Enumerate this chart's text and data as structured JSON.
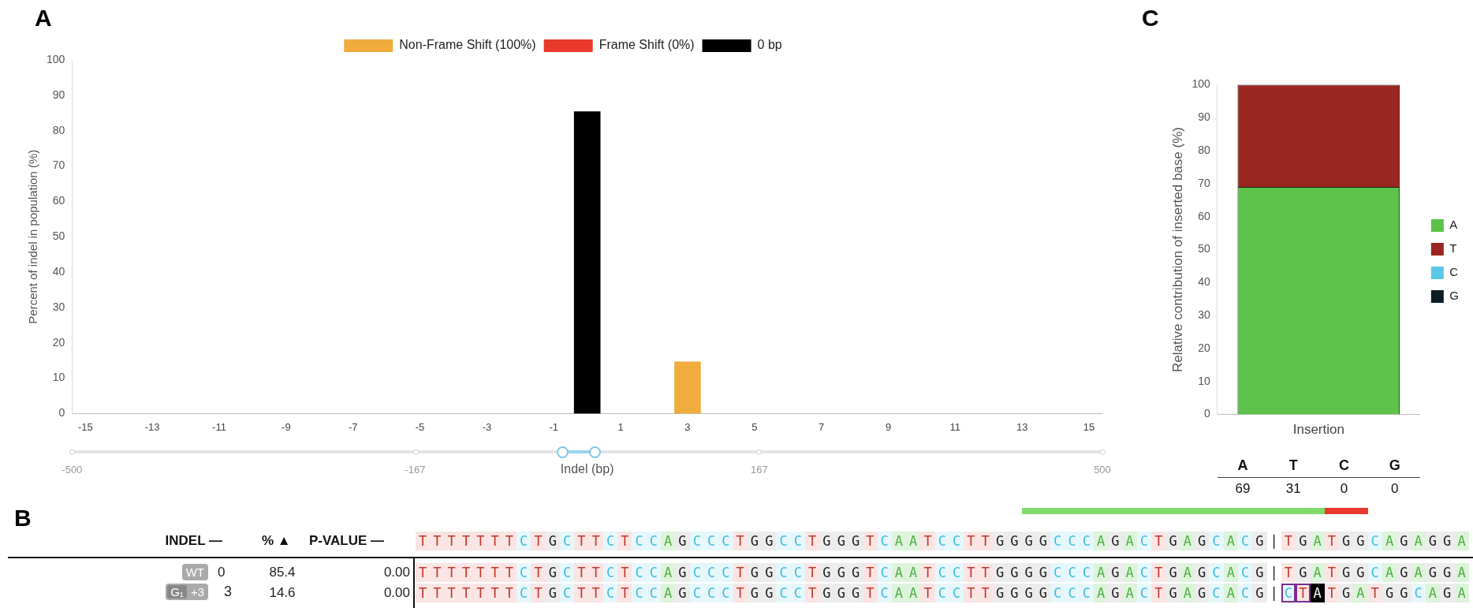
{
  "chart_data": [
    {
      "type": "bar",
      "title": "A",
      "ylabel": "Percent of indel in population (%)",
      "xlabel": "Indel (bp)",
      "xlim": [
        -15.4,
        15.4
      ],
      "xticks": [
        -15,
        -13,
        -11,
        -9,
        -7,
        -5,
        -3,
        -1,
        1,
        3,
        5,
        7,
        9,
        11,
        13,
        15
      ],
      "series": [
        {
          "name": "Non-Frame Shift (100%)",
          "color": "#f0ac3c",
          "x": [
            3
          ],
          "values": [
            14.6
          ]
        },
        {
          "name": "Frame Shift (0%)",
          "color": "#e8392b"
        },
        {
          "name": "0 bp",
          "color": "#000000",
          "x": [
            0
          ],
          "values": [
            85.4
          ]
        }
      ],
      "ylim": [
        0,
        100
      ],
      "yticks": [
        0,
        10,
        20,
        30,
        40,
        50,
        60,
        70,
        80,
        90,
        100
      ],
      "grid": false,
      "legend": "top",
      "annotations": [
        "-500",
        "-167",
        "167",
        "500"
      ]
    },
    {
      "type": "bar",
      "title": "C",
      "ylabel": "Relative contribution of inserted base (%)",
      "categories": [
        "Insertion"
      ],
      "series": [
        {
          "name": "A",
          "color": "#5bc24a",
          "values": [
            69
          ]
        },
        {
          "name": "T",
          "color": "#9b2621",
          "values": [
            31
          ]
        },
        {
          "name": "C",
          "color": "#5bc8e8",
          "values": [
            0
          ]
        },
        {
          "name": "G",
          "color": "#0d1b24",
          "values": [
            0
          ]
        }
      ],
      "stacked": true,
      "ylim": [
        0,
        100
      ],
      "yticks": [
        0,
        10,
        20,
        30,
        40,
        50,
        60,
        70,
        80,
        90,
        100
      ],
      "grid": false,
      "legend": "right",
      "annotations": [
        "A",
        "T",
        "C",
        "G",
        "69",
        "31",
        "0",
        "0"
      ]
    },
    {
      "type": "other",
      "title": "B",
      "annotations": [
        "INDEL —",
        "% ▲",
        "P-VALUE —",
        "TTTTTTTCTGCTTCTCCAGCCCTGGCCTGGGTCAATCCTTGGGGCCCAGACTGAGCACG|TGATGGCAGAGGA",
        "WT",
        "0",
        "85.4",
        "0.00",
        "TTTTTTTCTGCTTCTCCAGCCCTGGCCTGGGTCAATCCTTGGGGCCCAGACTGAGCACG|TGATGGCAGAGGA",
        "G₁",
        "+3",
        "3",
        "14.6",
        "0.00",
        "TTTTTTTCTGCTTCTCCAGCCCTGGCCTGGGTCAATCCTTGGGGCCCAGACTGAGCACG|CTATGATGGCAGA"
      ]
    }
  ]
}
